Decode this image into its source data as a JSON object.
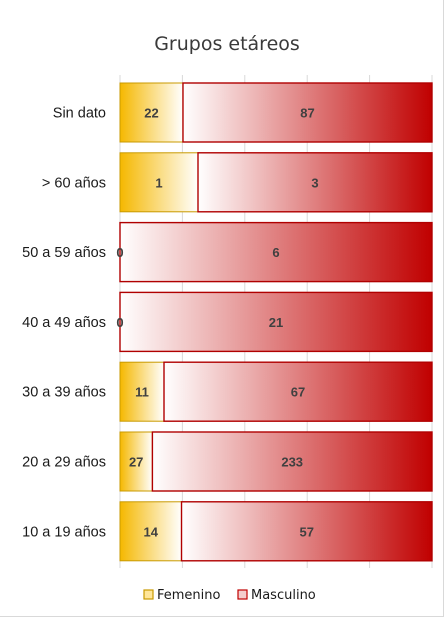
{
  "chart_data": {
    "type": "bar",
    "orientation": "horizontal",
    "stacking": "percent",
    "title": "Grupos etáreos",
    "categories": [
      "Sin dato",
      "> 60 años",
      "50 a 59 años",
      "40 a 49 años",
      "30 a 39 años",
      "20 a 29 años",
      "10 a 19 años"
    ],
    "series": [
      {
        "name": "Femenino",
        "values": [
          22,
          1,
          0,
          0,
          11,
          27,
          14
        ],
        "color": "#f5b800"
      },
      {
        "name": "Masculino",
        "values": [
          87,
          3,
          6,
          21,
          67,
          233,
          57
        ],
        "color": "#c00000"
      }
    ],
    "xlim": [
      0,
      100
    ],
    "grid": true,
    "legend_position": "bottom"
  }
}
